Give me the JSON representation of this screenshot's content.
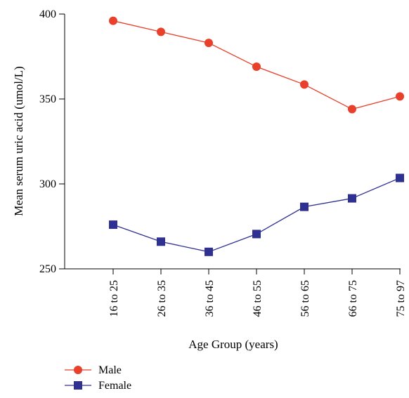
{
  "chart_data": {
    "type": "line",
    "categories": [
      "16 to 25",
      "26 to 35",
      "36 to 45",
      "46 to 55",
      "56 to 65",
      "66 to 75",
      "75 to 97"
    ],
    "series": [
      {
        "name": "Male",
        "values": [
          396,
          389.5,
          383,
          369,
          358.5,
          344,
          351.5
        ],
        "color": "#e8402a",
        "marker": "circle"
      },
      {
        "name": "Female",
        "values": [
          276,
          266,
          260,
          270.5,
          286.5,
          291.5,
          303.5
        ],
        "color": "#2e3192",
        "marker": "square"
      }
    ],
    "xlabel": "Age Group (years)",
    "ylabel": "Mean serum uric acid (umol/L)",
    "ylim": [
      250,
      400
    ],
    "yticks": [
      250,
      300,
      350,
      400
    ],
    "grid": false,
    "legend": "bottom-left"
  }
}
